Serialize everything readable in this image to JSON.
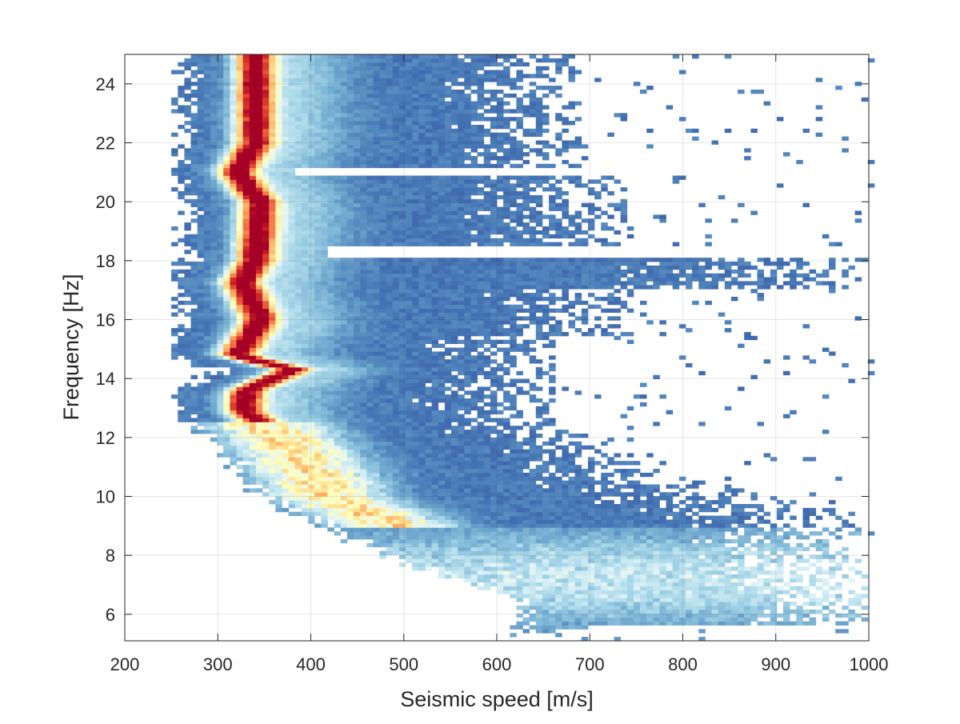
{
  "chart_data": {
    "type": "heatmap",
    "title": "",
    "xlabel": "Seismic speed [m/s]",
    "ylabel": "Frequency [Hz]",
    "xlim": [
      200,
      1000
    ],
    "ylim": [
      5.1,
      25
    ],
    "xticks": [
      200,
      300,
      400,
      500,
      600,
      700,
      800,
      900,
      1000
    ],
    "yticks": [
      6,
      8,
      10,
      12,
      14,
      16,
      18,
      20,
      22,
      24
    ],
    "xtick_labels": [
      "200",
      "300",
      "400",
      "500",
      "600",
      "700",
      "800",
      "900",
      "1000"
    ],
    "ytick_labels": [
      "6",
      "8",
      "10",
      "12",
      "14",
      "16",
      "18",
      "20",
      "22",
      "24"
    ],
    "grid": true,
    "colormap": "RdYlBu_r",
    "colormap_stops": [
      "#313695",
      "#4575b4",
      "#74add1",
      "#abd9e9",
      "#e0f3f8",
      "#ffffbf",
      "#fee090",
      "#fdae61",
      "#f46d43",
      "#d73027",
      "#a50026"
    ],
    "empty_color": "#ffffff",
    "description_values": {
      "max_density_ridge": [
        {
          "frequency": 24.0,
          "speed": 340
        },
        {
          "frequency": 22.0,
          "speed": 340
        },
        {
          "frequency": 21.0,
          "speed": 320
        },
        {
          "frequency": 20.0,
          "speed": 345
        },
        {
          "frequency": 18.0,
          "speed": 340
        },
        {
          "frequency": 17.3,
          "speed": 325
        },
        {
          "frequency": 16.0,
          "speed": 345
        },
        {
          "frequency": 14.8,
          "speed": 320
        },
        {
          "frequency": 14.3,
          "speed": 380
        },
        {
          "frequency": 13.6,
          "speed": 330
        },
        {
          "frequency": 12.9,
          "speed": 328
        },
        {
          "frequency": 12.0,
          "speed": 370
        },
        {
          "frequency": 10.0,
          "speed": 420
        },
        {
          "frequency": 8.0,
          "speed": 560
        },
        {
          "frequency": 6.5,
          "speed": 700
        }
      ]
    }
  }
}
